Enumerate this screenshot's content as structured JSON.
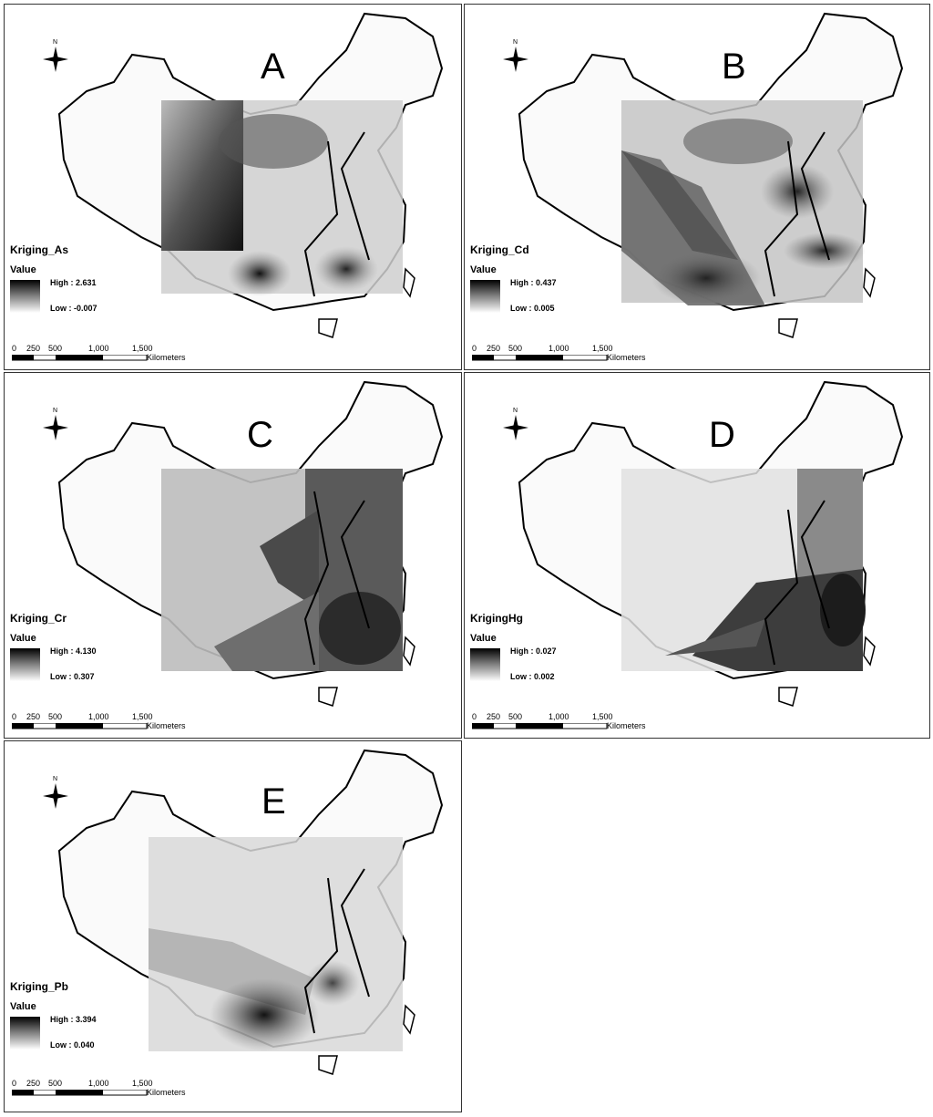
{
  "north_label": "N",
  "scale": {
    "ticks": [
      "0",
      "250",
      "500",
      "1,000",
      "1,500"
    ],
    "unit": "Kilometers"
  },
  "legend_value_label": "Value",
  "panels": [
    {
      "letter": "A",
      "title": "Kriging_As",
      "high": "High : 2.631",
      "low": "Low : -0.007",
      "high_value": 2.631,
      "low_value": -0.007
    },
    {
      "letter": "B",
      "title": "Kriging_Cd",
      "high": "High : 0.437",
      "low": "Low : 0.005",
      "high_value": 0.437,
      "low_value": 0.005
    },
    {
      "letter": "C",
      "title": "Kriging_Cr",
      "high": "High : 4.130",
      "low": "Low : 0.307",
      "high_value": 4.13,
      "low_value": 0.307
    },
    {
      "letter": "D",
      "title": "KrigingHg",
      "high": "High : 0.027",
      "low": "Low : 0.002",
      "high_value": 0.027,
      "low_value": 0.002
    },
    {
      "letter": "E",
      "title": "Kriging_Pb",
      "high": "High : 3.394",
      "low": "Low : 0.040",
      "high_value": 3.394,
      "low_value": 0.04
    }
  ]
}
